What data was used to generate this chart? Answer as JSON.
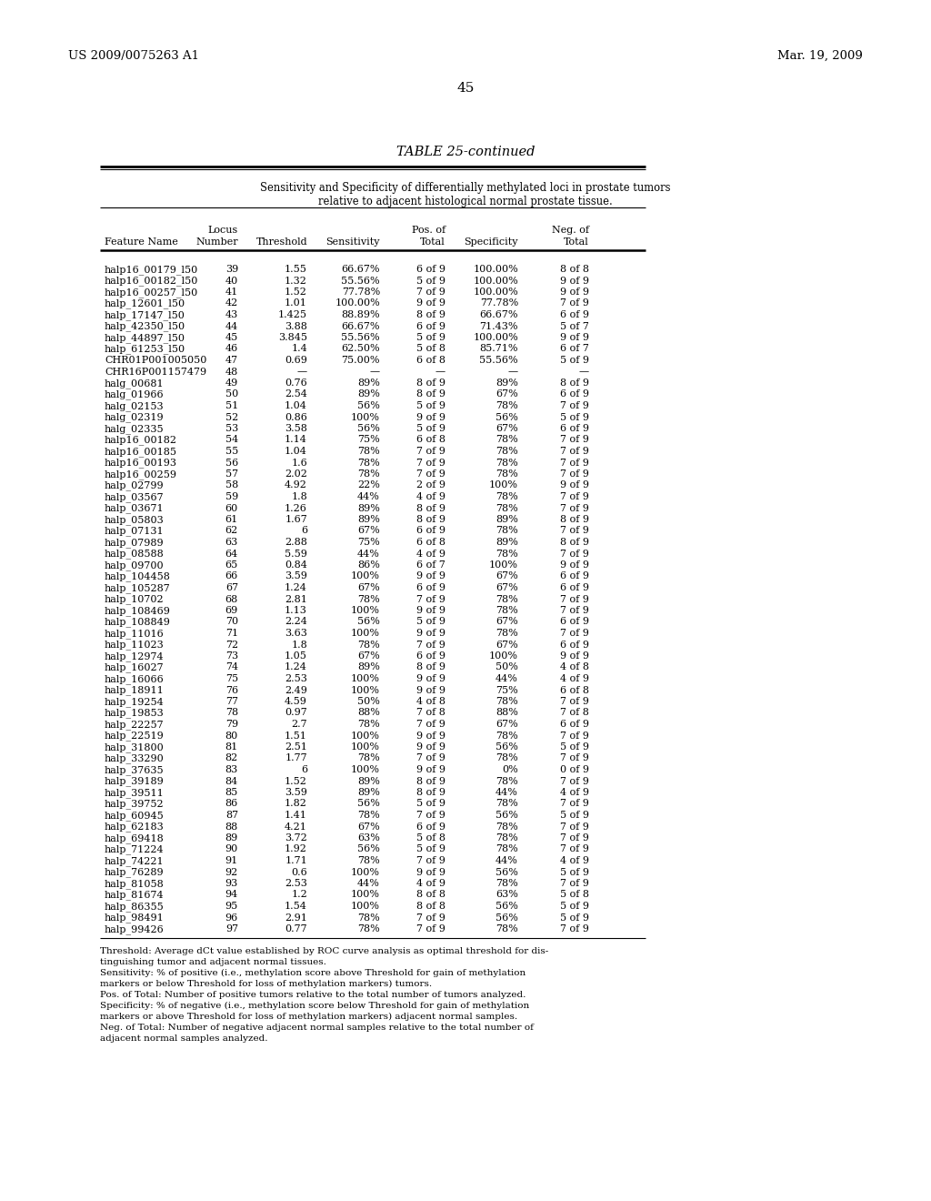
{
  "header_left": "US 2009/0075263 A1",
  "header_right": "Mar. 19, 2009",
  "page_number": "45",
  "table_title": "TABLE 25-continued",
  "subtitle_line1": "Sensitivity and Specificity of differentially methylated loci in prostate tumors",
  "subtitle_line2": "relative to adjacent histological normal prostate tissue.",
  "col_header_line1": [
    "",
    "Locus",
    "",
    "",
    "Pos. of",
    "",
    "Neg. of"
  ],
  "col_header_line2": [
    "Feature Name",
    "Number",
    "Threshold",
    "Sensitivity",
    "Total",
    "Specificity",
    "Total"
  ],
  "col_align": [
    "left",
    "right",
    "right",
    "right",
    "right",
    "right",
    "right"
  ],
  "rows": [
    [
      "halp16_00179_l50",
      "39",
      "1.55",
      "66.67%",
      "6 of 9",
      "100.00%",
      "8 of 8"
    ],
    [
      "halp16_00182_l50",
      "40",
      "1.32",
      "55.56%",
      "5 of 9",
      "100.00%",
      "9 of 9"
    ],
    [
      "halp16_00257_l50",
      "41",
      "1.52",
      "77.78%",
      "7 of 9",
      "100.00%",
      "9 of 9"
    ],
    [
      "halp_12601_l50",
      "42",
      "1.01",
      "100.00%",
      "9 of 9",
      "77.78%",
      "7 of 9"
    ],
    [
      "halp_17147_l50",
      "43",
      "1.425",
      "88.89%",
      "8 of 9",
      "66.67%",
      "6 of 9"
    ],
    [
      "halp_42350_l50",
      "44",
      "3.88",
      "66.67%",
      "6 of 9",
      "71.43%",
      "5 of 7"
    ],
    [
      "halp_44897_l50",
      "45",
      "3.845",
      "55.56%",
      "5 of 9",
      "100.00%",
      "9 of 9"
    ],
    [
      "halp_61253_l50",
      "46",
      "1.4",
      "62.50%",
      "5 of 8",
      "85.71%",
      "6 of 7"
    ],
    [
      "CHR01P001005050",
      "47",
      "0.69",
      "75.00%",
      "6 of 8",
      "55.56%",
      "5 of 9"
    ],
    [
      "CHR16P001157479",
      "48",
      "—",
      "—",
      "—",
      "—",
      "—"
    ],
    [
      "halg_00681",
      "49",
      "0.76",
      "89%",
      "8 of 9",
      "89%",
      "8 of 9"
    ],
    [
      "halg_01966",
      "50",
      "2.54",
      "89%",
      "8 of 9",
      "67%",
      "6 of 9"
    ],
    [
      "halg_02153",
      "51",
      "1.04",
      "56%",
      "5 of 9",
      "78%",
      "7 of 9"
    ],
    [
      "halg_02319",
      "52",
      "0.86",
      "100%",
      "9 of 9",
      "56%",
      "5 of 9"
    ],
    [
      "halg_02335",
      "53",
      "3.58",
      "56%",
      "5 of 9",
      "67%",
      "6 of 9"
    ],
    [
      "halp16_00182",
      "54",
      "1.14",
      "75%",
      "6 of 8",
      "78%",
      "7 of 9"
    ],
    [
      "halp16_00185",
      "55",
      "1.04",
      "78%",
      "7 of 9",
      "78%",
      "7 of 9"
    ],
    [
      "halp16_00193",
      "56",
      "1.6",
      "78%",
      "7 of 9",
      "78%",
      "7 of 9"
    ],
    [
      "halp16_00259",
      "57",
      "2.02",
      "78%",
      "7 of 9",
      "78%",
      "7 of 9"
    ],
    [
      "halp_02799",
      "58",
      "4.92",
      "22%",
      "2 of 9",
      "100%",
      "9 of 9"
    ],
    [
      "halp_03567",
      "59",
      "1.8",
      "44%",
      "4 of 9",
      "78%",
      "7 of 9"
    ],
    [
      "halp_03671",
      "60",
      "1.26",
      "89%",
      "8 of 9",
      "78%",
      "7 of 9"
    ],
    [
      "halp_05803",
      "61",
      "1.67",
      "89%",
      "8 of 9",
      "89%",
      "8 of 9"
    ],
    [
      "halp_07131",
      "62",
      "6",
      "67%",
      "6 of 9",
      "78%",
      "7 of 9"
    ],
    [
      "halp_07989",
      "63",
      "2.88",
      "75%",
      "6 of 8",
      "89%",
      "8 of 9"
    ],
    [
      "halp_08588",
      "64",
      "5.59",
      "44%",
      "4 of 9",
      "78%",
      "7 of 9"
    ],
    [
      "halp_09700",
      "65",
      "0.84",
      "86%",
      "6 of 7",
      "100%",
      "9 of 9"
    ],
    [
      "halp_104458",
      "66",
      "3.59",
      "100%",
      "9 of 9",
      "67%",
      "6 of 9"
    ],
    [
      "halp_105287",
      "67",
      "1.24",
      "67%",
      "6 of 9",
      "67%",
      "6 of 9"
    ],
    [
      "halp_10702",
      "68",
      "2.81",
      "78%",
      "7 of 9",
      "78%",
      "7 of 9"
    ],
    [
      "halp_108469",
      "69",
      "1.13",
      "100%",
      "9 of 9",
      "78%",
      "7 of 9"
    ],
    [
      "halp_108849",
      "70",
      "2.24",
      "56%",
      "5 of 9",
      "67%",
      "6 of 9"
    ],
    [
      "halp_11016",
      "71",
      "3.63",
      "100%",
      "9 of 9",
      "78%",
      "7 of 9"
    ],
    [
      "halp_11023",
      "72",
      "1.8",
      "78%",
      "7 of 9",
      "67%",
      "6 of 9"
    ],
    [
      "halp_12974",
      "73",
      "1.05",
      "67%",
      "6 of 9",
      "100%",
      "9 of 9"
    ],
    [
      "halp_16027",
      "74",
      "1.24",
      "89%",
      "8 of 9",
      "50%",
      "4 of 8"
    ],
    [
      "halp_16066",
      "75",
      "2.53",
      "100%",
      "9 of 9",
      "44%",
      "4 of 9"
    ],
    [
      "halp_18911",
      "76",
      "2.49",
      "100%",
      "9 of 9",
      "75%",
      "6 of 8"
    ],
    [
      "halp_19254",
      "77",
      "4.59",
      "50%",
      "4 of 8",
      "78%",
      "7 of 9"
    ],
    [
      "halp_19853",
      "78",
      "0.97",
      "88%",
      "7 of 8",
      "88%",
      "7 of 8"
    ],
    [
      "halp_22257",
      "79",
      "2.7",
      "78%",
      "7 of 9",
      "67%",
      "6 of 9"
    ],
    [
      "halp_22519",
      "80",
      "1.51",
      "100%",
      "9 of 9",
      "78%",
      "7 of 9"
    ],
    [
      "halp_31800",
      "81",
      "2.51",
      "100%",
      "9 of 9",
      "56%",
      "5 of 9"
    ],
    [
      "halp_33290",
      "82",
      "1.77",
      "78%",
      "7 of 9",
      "78%",
      "7 of 9"
    ],
    [
      "halp_37635",
      "83",
      "6",
      "100%",
      "9 of 9",
      "0%",
      "0 of 9"
    ],
    [
      "halp_39189",
      "84",
      "1.52",
      "89%",
      "8 of 9",
      "78%",
      "7 of 9"
    ],
    [
      "halp_39511",
      "85",
      "3.59",
      "89%",
      "8 of 9",
      "44%",
      "4 of 9"
    ],
    [
      "halp_39752",
      "86",
      "1.82",
      "56%",
      "5 of 9",
      "78%",
      "7 of 9"
    ],
    [
      "halp_60945",
      "87",
      "1.41",
      "78%",
      "7 of 9",
      "56%",
      "5 of 9"
    ],
    [
      "halp_62183",
      "88",
      "4.21",
      "67%",
      "6 of 9",
      "78%",
      "7 of 9"
    ],
    [
      "halp_69418",
      "89",
      "3.72",
      "63%",
      "5 of 8",
      "78%",
      "7 of 9"
    ],
    [
      "halp_71224",
      "90",
      "1.92",
      "56%",
      "5 of 9",
      "78%",
      "7 of 9"
    ],
    [
      "halp_74221",
      "91",
      "1.71",
      "78%",
      "7 of 9",
      "44%",
      "4 of 9"
    ],
    [
      "halp_76289",
      "92",
      "0.6",
      "100%",
      "9 of 9",
      "56%",
      "5 of 9"
    ],
    [
      "halp_81058",
      "93",
      "2.53",
      "44%",
      "4 of 9",
      "78%",
      "7 of 9"
    ],
    [
      "halp_81674",
      "94",
      "1.2",
      "100%",
      "8 of 8",
      "63%",
      "5 of 8"
    ],
    [
      "halp_86355",
      "95",
      "1.54",
      "100%",
      "8 of 8",
      "56%",
      "5 of 9"
    ],
    [
      "halp_98491",
      "96",
      "2.91",
      "78%",
      "7 of 9",
      "56%",
      "5 of 9"
    ],
    [
      "halp_99426",
      "97",
      "0.77",
      "78%",
      "7 of 9",
      "78%",
      "7 of 9"
    ]
  ],
  "footnote_lines": [
    "Threshold: Average dCt value established by ROC curve analysis as optimal threshold for dis-",
    "tinguishing tumor and adjacent normal tissues.",
    "Sensitivity: % of positive (i.e., methylation score above Threshold for gain of methylation",
    "markers or below Threshold for loss of methylation markers) tumors.",
    "Pos. of Total: Number of positive tumors relative to the total number of tumors analyzed.",
    "Specificity: % of negative (i.e., methylation score below Threshold for gain of methylation",
    "markers or above Threshold for loss of methylation markers) adjacent normal samples.",
    "Neg. of Total: Number of negative adjacent normal samples relative to the total number of",
    "adjacent normal samples analyzed."
  ],
  "bg_color": "#ffffff",
  "text_color": "#000000",
  "font_size_header": 9.5,
  "font_size_title": 10.5,
  "font_size_data": 8.0,
  "font_size_footnote": 7.5,
  "font_size_page": 11
}
